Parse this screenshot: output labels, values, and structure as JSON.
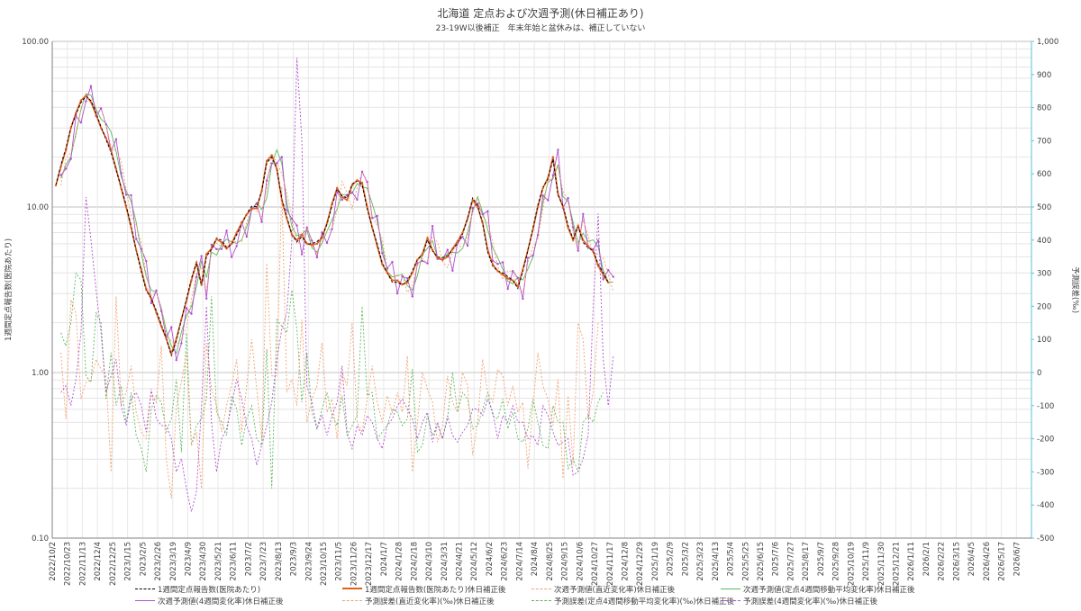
{
  "chart_data": {
    "type": "line",
    "title": "北海道 定点および次週予測(休日補正あり)",
    "subtitle": "23-19W以後補正　年末年始と盆休みは、補正していない",
    "ylabel_left": "1週間定点報告数(医院あたり)",
    "ylabel_right": "予測誤差(‰)",
    "y_left_scale": "log",
    "y_left_ticks": [
      "100.00",
      "10.00",
      "1.00",
      "0.10"
    ],
    "y_left_range": [
      0.1,
      100
    ],
    "y_right_ticks": [
      "1,000",
      "900",
      "800",
      "700",
      "600",
      "500",
      "400",
      "300",
      "200",
      "100",
      "0",
      "-100",
      "-200",
      "-300",
      "-400",
      "-500"
    ],
    "y_right_range": [
      -500,
      1000
    ],
    "x_tick_labels": [
      "2022/10/2",
      "2022/10/23",
      "2022/11/13",
      "2022/12/4",
      "2022/12/25",
      "2023/1/15",
      "2023/2/5",
      "2023/2/26",
      "2023/3/19",
      "2023/4/9",
      "2023/4/30",
      "2023/5/21",
      "2023/6/11",
      "2023/7/2",
      "2023/7/23",
      "2023/8/13",
      "2023/9/3",
      "2023/9/24",
      "2023/10/15",
      "2023/11/5",
      "2023/11/26",
      "2023/12/17",
      "2024/1/7",
      "2024/1/28",
      "2024/2/18",
      "2024/3/10",
      "2024/3/31",
      "2024/4/21",
      "2024/5/12",
      "2024/6/2",
      "2024/6/23",
      "2024/7/14",
      "2024/8/4",
      "2024/8/25",
      "2024/9/15",
      "2024/10/6",
      "2024/10/27",
      "2024/11/17",
      "2024/12/8",
      "2024/12/29",
      "2025/1/19",
      "2025/2/9",
      "2025/3/2",
      "2025/3/23",
      "2025/4/13",
      "2025/5/4",
      "2025/5/25",
      "2025/6/15",
      "2025/7/6",
      "2025/7/27",
      "2025/8/17",
      "2025/9/7",
      "2025/9/28",
      "2025/10/19",
      "2025/11/9",
      "2025/11/30",
      "2025/12/21",
      "2026/1/11",
      "2026/2/1",
      "2026/2/22",
      "2026/3/15",
      "2026/4/5",
      "2026/4/26",
      "2026/5/17",
      "2026/6/7"
    ],
    "grid": true,
    "legend_position": "bottom",
    "main_series": [
      13.5,
      17.5,
      22,
      30,
      37,
      44,
      47,
      43,
      36,
      30,
      26,
      22,
      17,
      13,
      10,
      7.5,
      5.5,
      4.2,
      3.2,
      2.8,
      2.3,
      1.9,
      1.6,
      1.3,
      1.6,
      2.1,
      2.7,
      3.6,
      4.6,
      3.4,
      5.2,
      5.6,
      6.4,
      6.1,
      5.6,
      6.0,
      7.0,
      8.0,
      9.0,
      9.8,
      9.8,
      12.5,
      19,
      20.5,
      17,
      11,
      8.5,
      6.8,
      6.3,
      6.8,
      6.0,
      5.9,
      6.0,
      6.5,
      8.0,
      10.5,
      13.0,
      11.5,
      11.0,
      13.5,
      14.5,
      14.0,
      10.0,
      7.5,
      5.8,
      4.5,
      4.0,
      3.6,
      3.6,
      3.4,
      3.5,
      4.0,
      4.8,
      5.2,
      6.5,
      5.5,
      4.9,
      4.8,
      5.0,
      5.6,
      6.2,
      7.0,
      8.5,
      11.0,
      10.0,
      8.0,
      5.5,
      4.5,
      4.1,
      3.9,
      3.7,
      3.6,
      3.3,
      4.2,
      5.5,
      7.3,
      10,
      13,
      15,
      20,
      12,
      10,
      7.5,
      6.3,
      7.7,
      6.3,
      5.8,
      5.4,
      4.4,
      3.9,
      3.5
    ],
    "series": [
      {
        "name": "1週間定点報告数(医院あたり)",
        "color": "#000000",
        "dash": "4,2",
        "axis": "left"
      },
      {
        "name": "1週間定点報告数(医院あたり)休日補正後",
        "color": "#e06020",
        "dash": "",
        "axis": "left"
      },
      {
        "name": "次週予測値(直近変化率)休日補正後",
        "color": "#f4a070",
        "dash": "2,2",
        "axis": "left"
      },
      {
        "name": "次週予測値(定点4週間移動平均変化率)休日補正後",
        "color": "#5cb85c",
        "dash": "",
        "axis": "left"
      },
      {
        "name": "次週予測値(4週間変化率)休日補正後",
        "color": "#b050d0",
        "dash": "",
        "axis": "left"
      },
      {
        "name": "予測誤差(直近変化率)(‰)休日補正後",
        "color": "#f4a070",
        "dash": "2,2",
        "axis": "right"
      },
      {
        "name": "予測誤差(定点4週間移動平均変化率)(‰)休日補正後",
        "color": "#5cb85c",
        "dash": "2,2",
        "axis": "right"
      },
      {
        "name": "予測誤差(4週間変化率)(‰)休日補正後",
        "color": "#b050d0",
        "dash": "2,2",
        "axis": "right"
      }
    ],
    "error_series": {
      "direct": [
        60,
        -140,
        220,
        180,
        -80,
        -30,
        -20,
        40,
        10,
        -10,
        -300,
        230,
        -100,
        -60,
        20,
        -120,
        -180,
        -200,
        -60,
        -90,
        80,
        -260,
        -380,
        -100,
        -30,
        60,
        -220,
        -180,
        -350,
        90,
        -50,
        -100,
        -180,
        -100,
        -40,
        40,
        -180,
        -40,
        100,
        -50,
        -200,
        330,
        -10,
        -10,
        560,
        -60,
        -20,
        -100,
        160,
        -150,
        -80,
        -40,
        90,
        -120,
        -80,
        -200,
        0,
        -40,
        150,
        -150,
        -180,
        -80,
        20,
        -90,
        -150,
        -70,
        -120,
        -60,
        -120,
        50,
        -300,
        -150,
        0,
        -50,
        -90,
        -210,
        -160,
        -10,
        -90,
        -120,
        0,
        -40,
        -250,
        -150,
        40,
        -60,
        -90,
        10,
        -10,
        -100,
        -40,
        -120,
        -90,
        -290,
        -100,
        60,
        -40,
        -80,
        -160,
        -20,
        -320,
        -70,
        -280,
        150,
        100,
        -140,
        -60,
        150
      ],
      "ma4": [
        120,
        80,
        150,
        300,
        280,
        -10,
        -30,
        180,
        150,
        -80,
        60,
        -100,
        -40,
        -150,
        -60,
        -190,
        -230,
        -300,
        -110,
        -70,
        -90,
        -180,
        -140,
        -20,
        -240,
        120,
        -220,
        -160,
        -140,
        -80,
        230,
        -120,
        -150,
        -190,
        -70,
        -110,
        -220,
        -140,
        -100,
        -200,
        -220,
        70,
        -350,
        160,
        140,
        120,
        250,
        130,
        -90,
        60,
        -120,
        -170,
        -110,
        -60,
        -130,
        -160,
        -70,
        -190,
        -160,
        -130,
        200,
        -70,
        -60,
        -200,
        -180,
        -160,
        -110,
        -120,
        -160,
        -140,
        10,
        -240,
        -220,
        -130,
        -190,
        -160,
        -200,
        -140,
        0,
        -120,
        -60,
        -80,
        -170,
        -160,
        -110,
        -60,
        -130,
        -140,
        -80,
        -170,
        -120,
        -200,
        -210,
        -170,
        -80,
        -150,
        -220,
        -230,
        -100,
        -150,
        -150,
        -290,
        -260,
        -300,
        -150,
        -130,
        -150,
        -90,
        -60
      ],
      "w4": [
        -60,
        -40,
        -100,
        -20,
        120,
        530,
        400,
        250,
        120,
        -60,
        -10,
        40,
        -100,
        -160,
        -80,
        -60,
        -100,
        -180,
        -50,
        -140,
        -160,
        -160,
        -200,
        -300,
        -260,
        -350,
        -420,
        -360,
        -100,
        200,
        -150,
        -300,
        -200,
        -170,
        -100,
        -20,
        -80,
        -160,
        -200,
        -280,
        -220,
        -160,
        -90,
        40,
        130,
        180,
        400,
        950,
        700,
        -40,
        -90,
        -170,
        -130,
        -190,
        -130,
        -90,
        20,
        -180,
        -230,
        -160,
        -190,
        -130,
        -150,
        -200,
        -230,
        -160,
        -140,
        -100,
        -80,
        -110,
        -140,
        -200,
        -150,
        -120,
        -210,
        -150,
        -200,
        -130,
        -190,
        -210,
        -180,
        -160,
        -110,
        -110,
        -130,
        -80,
        -120,
        -200,
        -130,
        -150,
        -100,
        -150,
        -150,
        -200,
        -190,
        -220,
        -100,
        -130,
        -180,
        -220,
        -210,
        -200,
        -310,
        -300,
        -260,
        -190,
        200,
        480,
        40,
        -100,
        50
      ]
    }
  },
  "legend": {
    "items": [
      "1週間定点報告数(医院あたり)",
      "1週間定点報告数(医院あたり)休日補正後",
      "次週予測値(直近変化率)休日補正後",
      "次週予測値(定点4週間移動平均変化率)休日補正後",
      "次週予測値(4週間変化率)休日補正後",
      "予測誤差(直近変化率)(‰)休日補正後",
      "予測誤差(定点4週間移動平均変化率)(‰)休日補正後",
      "予測誤差(4週間変化率)(‰)休日補正後"
    ]
  }
}
